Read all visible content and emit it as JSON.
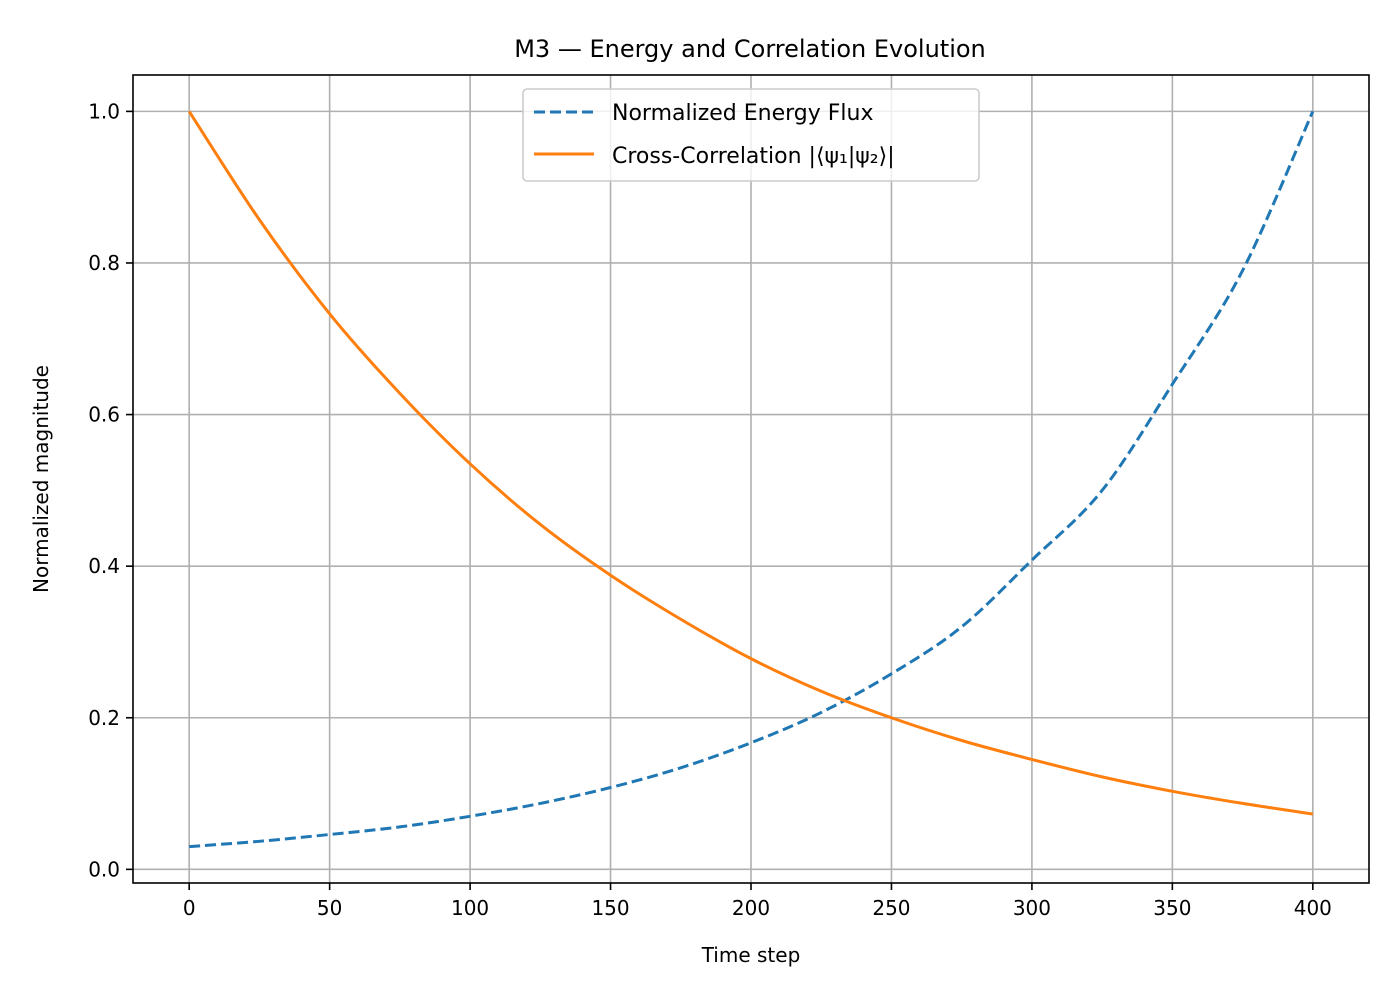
{
  "chart_data": {
    "type": "line",
    "title": "M3 — Energy and Correlation Evolution",
    "xlabel": "Time step",
    "ylabel": "Normalized magnitude",
    "xlim": [
      -20,
      420
    ],
    "ylim": [
      -0.018,
      1.048
    ],
    "xticks": [
      0,
      50,
      100,
      150,
      200,
      250,
      300,
      350,
      400
    ],
    "yticks": [
      0.0,
      0.2,
      0.4,
      0.6,
      0.8,
      1.0
    ],
    "xtick_labels": [
      "0",
      "50",
      "100",
      "150",
      "200",
      "250",
      "300",
      "350",
      "400"
    ],
    "ytick_labels": [
      "0.0",
      "0.2",
      "0.4",
      "0.6",
      "0.8",
      "1.0"
    ],
    "grid": true,
    "legend_position": "top-center",
    "x": [
      0,
      25,
      50,
      75,
      100,
      125,
      150,
      175,
      200,
      225,
      250,
      275,
      300,
      325,
      350,
      375,
      400
    ],
    "series": [
      {
        "name": "Normalized Energy Flux",
        "color": "#1f77b4",
        "style": "dashed",
        "values": [
          0.03,
          0.037,
          0.046,
          0.056,
          0.07,
          0.087,
          0.108,
          0.134,
          0.167,
          0.207,
          0.258,
          0.32,
          0.408,
          0.5,
          0.64,
          0.79,
          1.0
        ]
      },
      {
        "name": "Cross-Correlation |⟨ψ₁|ψ₂⟩|",
        "color": "#ff7f0e",
        "style": "solid",
        "values": [
          1.0,
          0.857,
          0.733,
          0.628,
          0.535,
          0.455,
          0.388,
          0.33,
          0.278,
          0.235,
          0.2,
          0.17,
          0.145,
          0.122,
          0.103,
          0.087,
          0.073
        ]
      }
    ]
  }
}
